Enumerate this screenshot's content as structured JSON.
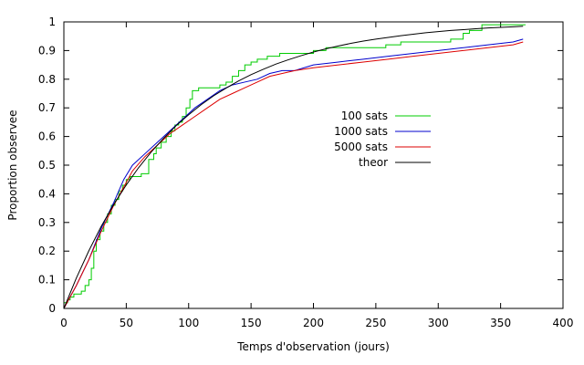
{
  "chart_data": {
    "type": "line",
    "title": "",
    "xlabel": "Temps d'observation (jours)",
    "ylabel": "Proportion observee",
    "xlim": [
      0,
      400
    ],
    "ylim": [
      0,
      1
    ],
    "xticks": [
      0,
      50,
      100,
      150,
      200,
      250,
      300,
      350,
      400
    ],
    "yticks": [
      0,
      0.1,
      0.2,
      0.3,
      0.4,
      0.5,
      0.6,
      0.7,
      0.8,
      0.9,
      1
    ],
    "ytick_labels": [
      "0",
      "0.1",
      "0.2",
      "0.3",
      "0.4",
      "0.5",
      "0.6",
      "0.7",
      "0.8",
      "0.9",
      "1"
    ],
    "grid": false,
    "legend_position": "right-center",
    "series": [
      {
        "name": "100 sats",
        "color": "#00cc00",
        "step": true,
        "x": [
          0,
          3,
          5,
          8,
          14,
          17,
          20,
          22,
          24,
          26,
          29,
          32,
          35,
          38,
          41,
          44,
          47,
          50,
          53,
          57,
          62,
          68,
          72,
          74,
          78,
          82,
          86,
          89,
          92,
          95,
          98,
          101,
          103,
          106,
          108,
          111,
          113,
          125,
          130,
          135,
          140,
          145,
          150,
          155,
          163,
          168,
          173,
          180,
          200,
          210,
          225,
          240,
          258,
          262,
          270,
          300,
          310,
          320,
          325,
          335,
          370
        ],
        "y": [
          0.02,
          0.03,
          0.04,
          0.05,
          0.06,
          0.08,
          0.1,
          0.14,
          0.2,
          0.24,
          0.27,
          0.3,
          0.33,
          0.36,
          0.38,
          0.41,
          0.43,
          0.45,
          0.46,
          0.46,
          0.47,
          0.52,
          0.54,
          0.56,
          0.58,
          0.6,
          0.62,
          0.64,
          0.65,
          0.67,
          0.7,
          0.73,
          0.76,
          0.76,
          0.77,
          0.77,
          0.77,
          0.78,
          0.79,
          0.81,
          0.83,
          0.85,
          0.86,
          0.87,
          0.88,
          0.88,
          0.89,
          0.89,
          0.9,
          0.91,
          0.91,
          0.91,
          0.92,
          0.92,
          0.93,
          0.93,
          0.94,
          0.96,
          0.97,
          0.99,
          0.99
        ]
      },
      {
        "name": "1000 sats",
        "color": "#0000cc",
        "step": false,
        "x": [
          0,
          10,
          20,
          30,
          40,
          48,
          55,
          65,
          75,
          85,
          95,
          105,
          115,
          125,
          135,
          145,
          155,
          165,
          175,
          185,
          200,
          220,
          240,
          260,
          280,
          300,
          320,
          340,
          360,
          368
        ],
        "y": [
          0,
          0.08,
          0.17,
          0.28,
          0.37,
          0.45,
          0.5,
          0.54,
          0.58,
          0.62,
          0.66,
          0.7,
          0.73,
          0.76,
          0.78,
          0.79,
          0.8,
          0.82,
          0.83,
          0.83,
          0.85,
          0.86,
          0.87,
          0.88,
          0.89,
          0.9,
          0.91,
          0.92,
          0.93,
          0.94
        ]
      },
      {
        "name": "5000 sats",
        "color": "#dd0000",
        "step": false,
        "x": [
          0,
          10,
          20,
          30,
          40,
          50,
          55,
          65,
          75,
          85,
          95,
          105,
          115,
          125,
          135,
          145,
          155,
          165,
          175,
          185,
          200,
          220,
          240,
          260,
          280,
          300,
          320,
          340,
          360,
          368
        ],
        "y": [
          0,
          0.08,
          0.17,
          0.27,
          0.36,
          0.44,
          0.48,
          0.53,
          0.57,
          0.61,
          0.64,
          0.67,
          0.7,
          0.73,
          0.75,
          0.77,
          0.79,
          0.81,
          0.82,
          0.83,
          0.84,
          0.85,
          0.86,
          0.87,
          0.88,
          0.89,
          0.9,
          0.91,
          0.92,
          0.93
        ]
      },
      {
        "name": "theor",
        "color": "#000000",
        "step": false,
        "x": [
          0,
          10,
          20,
          30,
          40,
          50,
          60,
          70,
          80,
          90,
          100,
          110,
          120,
          130,
          140,
          150,
          160,
          170,
          180,
          190,
          200,
          210,
          220,
          230,
          240,
          250,
          260,
          270,
          280,
          290,
          300,
          310,
          320,
          330,
          340,
          350,
          360,
          368
        ],
        "y": [
          0,
          0.106,
          0.201,
          0.287,
          0.363,
          0.431,
          0.492,
          0.546,
          0.594,
          0.638,
          0.676,
          0.711,
          0.742,
          0.769,
          0.794,
          0.816,
          0.835,
          0.853,
          0.868,
          0.882,
          0.895,
          0.906,
          0.916,
          0.925,
          0.933,
          0.94,
          0.946,
          0.952,
          0.957,
          0.962,
          0.966,
          0.97,
          0.973,
          0.976,
          0.979,
          0.981,
          0.983,
          0.985
        ]
      }
    ]
  }
}
